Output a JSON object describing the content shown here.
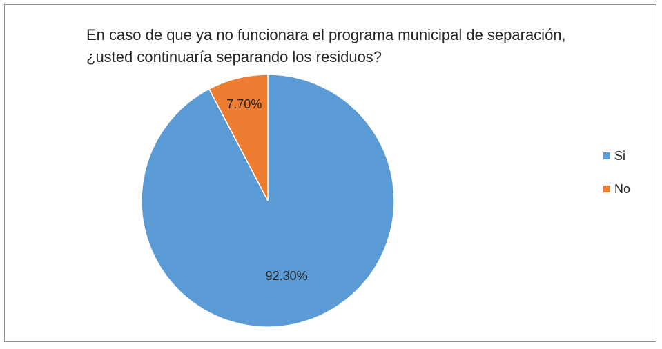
{
  "chart_data": {
    "type": "pie",
    "title": "En caso de que ya no funcionara el programa municipal de separación,\n¿usted continuaría separando los residuos?",
    "categories": [
      "Si",
      "No"
    ],
    "values": [
      92.3,
      7.7
    ],
    "data_labels": [
      "92.30%",
      "7.70%"
    ],
    "colors": [
      "#5b9bd5",
      "#ed7d31"
    ],
    "legend_position": "right"
  }
}
